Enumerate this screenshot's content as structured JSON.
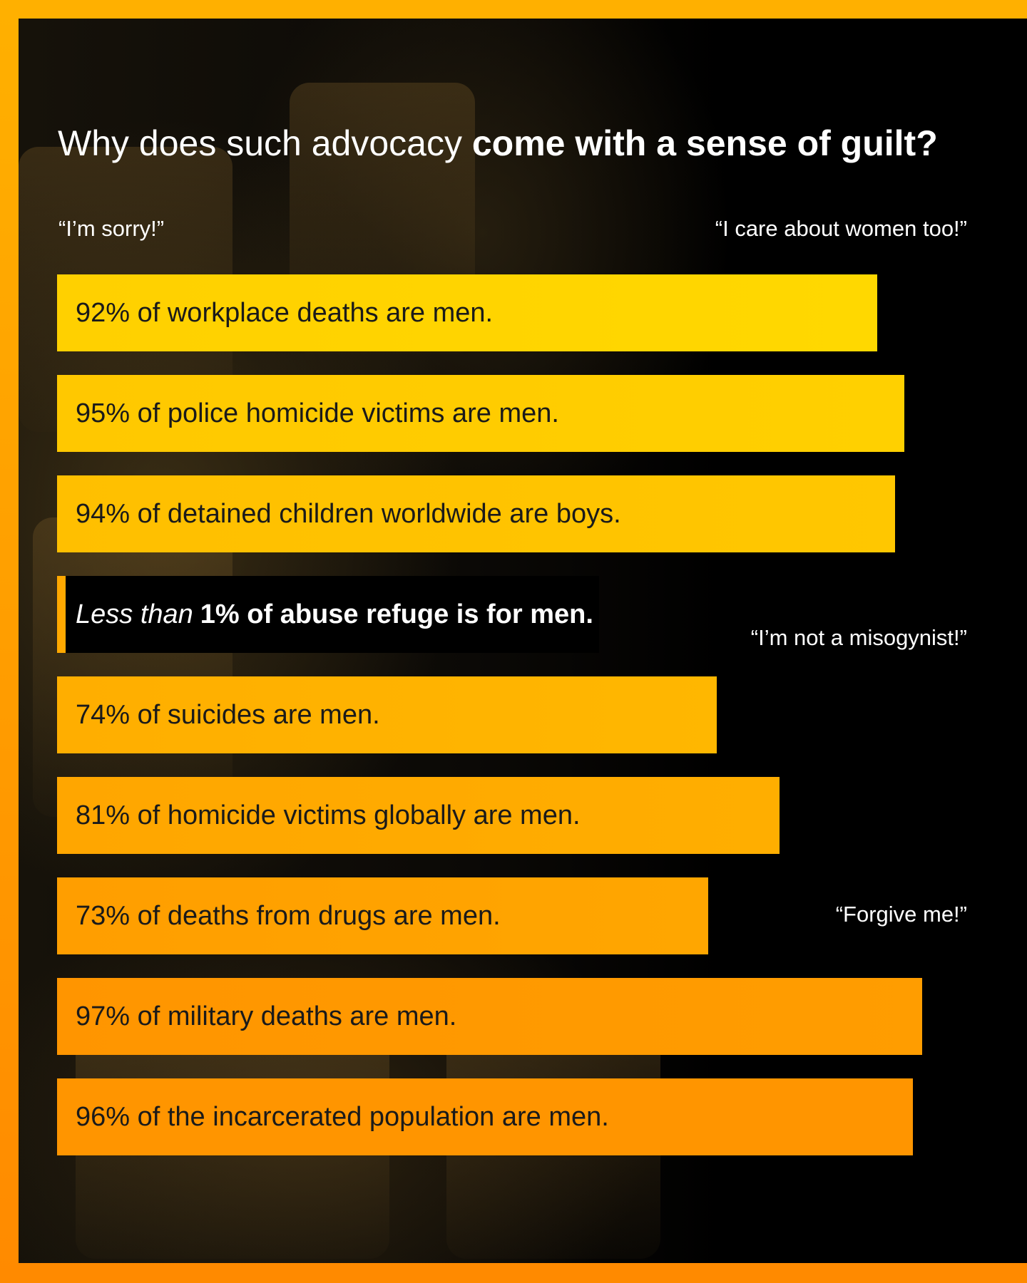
{
  "title": {
    "normal": "Why does such advocacy",
    "bold": "come with a sense of guilt?"
  },
  "quotes": [
    {
      "text": "“I’m sorry!”"
    },
    {
      "text": "“I care about women too!”"
    },
    {
      "text": "“I’m not a misogynist!”"
    },
    {
      "text": "“Forgive me!”"
    }
  ],
  "colors": {
    "frame": "#FFA500",
    "bar_top": "#FFD400",
    "bar_bottom": "#FF9800",
    "panel": "#000000"
  },
  "chart_data": {
    "type": "bar",
    "orientation": "horizontal",
    "xlim": [
      0,
      100
    ],
    "categories": [
      "92% of workplace deaths are men.",
      "95% of police homicide victims are men.",
      "94% of detained children worldwide are boys.",
      "Less than 1% of abuse refuge is for men.",
      "74% of suicides are men.",
      "81% of homicide victims globally are men.",
      "73% of deaths from drugs are men.",
      "97% of military deaths are men.",
      "96% of the incarcerated population are men."
    ],
    "values": [
      92,
      95,
      94,
      1,
      74,
      81,
      73,
      97,
      96
    ],
    "highlight_prefix": "Less than",
    "highlight_rest": "1% of abuse refuge is for men."
  }
}
